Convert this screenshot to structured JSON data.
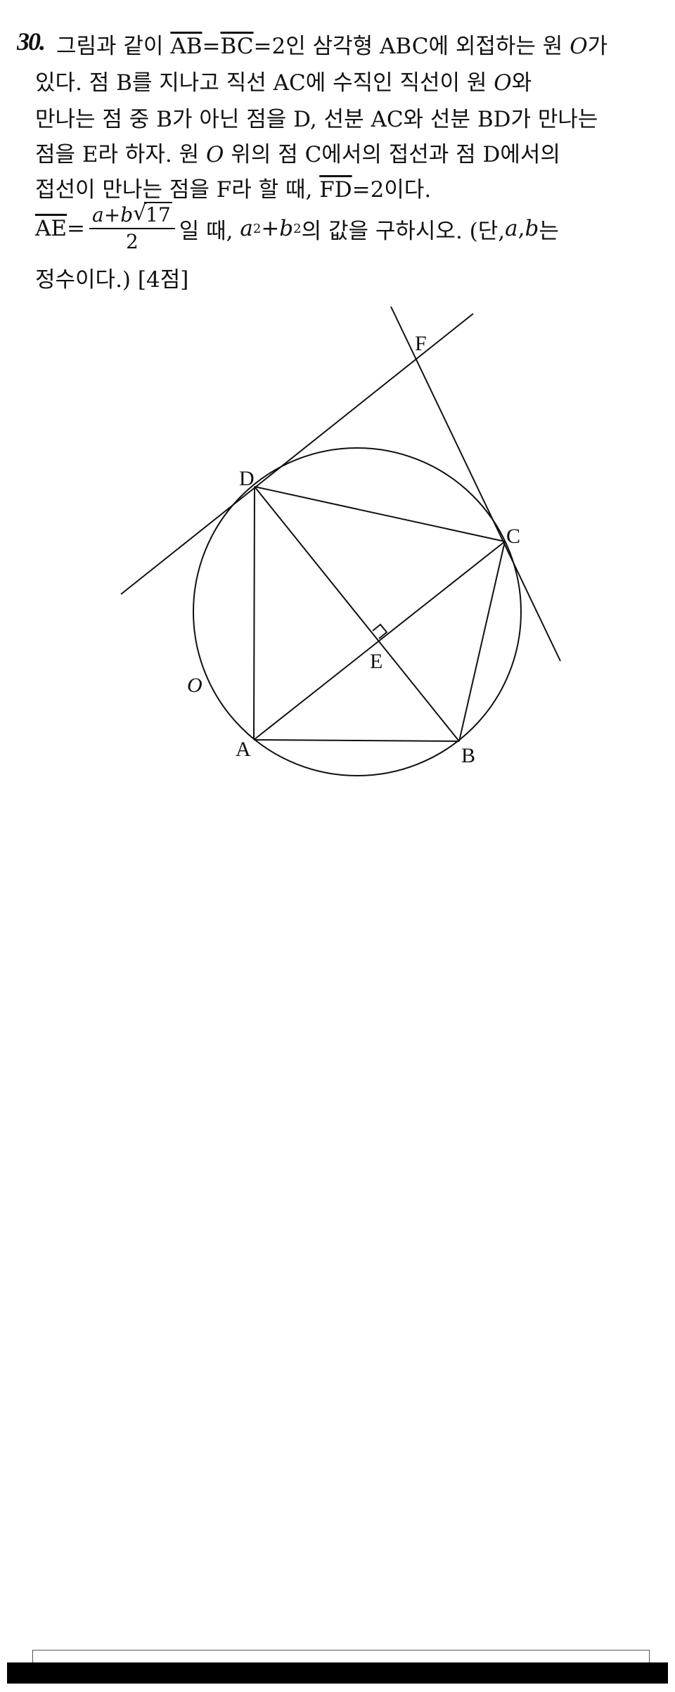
{
  "problem": {
    "number": "30.",
    "line1": {
      "pre": "그림과 같이 ",
      "ab": "AB",
      "eq": "=",
      "bc": "BC",
      "mid": "=2인 삼각형 ABC에 외접하는 원 ",
      "o": "O",
      "post": "가"
    },
    "line2": {
      "pre": "있다. 점 B를 지나고 직선 AC에 수직인 직선이 원 ",
      "o": "O",
      "post": "와"
    },
    "line3": "만나는 점 중 B가 아닌 점을 D, 선분 AC와 선분 BD가 만나는",
    "line4": {
      "pre": "점을 E라 하자. 원 ",
      "o": "O",
      "post": " 위의 점 C에서의 접선과 점 D에서의"
    },
    "line5": {
      "pre": "접선이 만나는 점을 F라 할 때, ",
      "fd": "FD",
      "post": "=2이다."
    },
    "line6": {
      "ae": "AE",
      "eq": "=",
      "num_a": "a",
      "num_plus": "+",
      "num_b": "b",
      "sqrt_sym": "√",
      "sqrt_val": "17",
      "den": "2",
      "post1": " 일 때, ",
      "a2": "a",
      "sup1": "2",
      "plus": "+",
      "b2": "b",
      "sup2": "2",
      "post2": "의 값을 구하시오. (단, ",
      "a3": "a",
      "comma": ", ",
      "b3": "b",
      "post3": "는"
    },
    "line7": "정수이다.) [4점]"
  },
  "figure": {
    "labels": {
      "F": "F",
      "D": "D",
      "C": "C",
      "E": "E",
      "O": "O",
      "A": "A",
      "B": "B"
    }
  }
}
